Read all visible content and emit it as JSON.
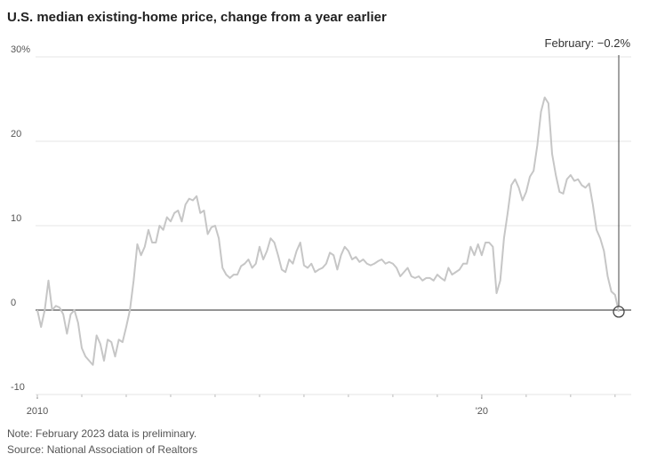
{
  "chart_data": {
    "type": "line",
    "title": "U.S. median existing-home price, change from a year earlier",
    "annotation": "February: −0.2%",
    "note": "Note: February 2023 data is preliminary.",
    "source": "Source: National Association of Realtors",
    "categories": [
      "2010",
      null,
      null,
      null,
      null,
      null,
      null,
      null,
      null,
      null,
      null,
      null,
      null,
      null,
      null,
      null,
      null,
      null,
      null,
      null,
      null,
      null,
      null,
      null,
      null,
      null,
      null,
      null,
      null,
      null,
      null,
      null,
      null,
      null,
      null,
      null,
      null,
      null,
      null,
      null,
      null,
      null,
      null,
      null,
      null,
      null,
      null,
      null,
      null,
      null,
      null,
      null,
      null,
      null,
      null,
      null,
      null,
      null,
      null,
      null,
      null,
      null,
      null,
      null,
      null,
      null,
      null,
      null,
      null,
      null,
      null,
      null,
      null,
      null,
      null,
      null,
      null,
      null,
      null,
      null,
      null,
      null,
      null,
      null,
      null,
      null,
      null,
      null,
      null,
      null,
      null,
      null,
      null,
      null,
      null,
      null,
      null,
      null,
      null,
      null,
      null,
      null,
      null,
      null,
      null,
      null,
      null,
      null,
      null,
      null,
      null,
      null,
      null,
      null,
      null,
      null,
      null,
      null,
      null,
      null,
      "'20",
      null,
      null,
      null,
      null,
      null,
      null,
      null,
      null,
      null,
      null,
      null,
      null,
      null,
      null,
      null,
      null,
      null,
      null,
      null,
      null,
      null,
      null,
      null,
      null,
      null,
      null,
      null,
      null,
      null,
      null,
      null,
      null,
      null,
      null,
      null,
      null,
      null
    ],
    "series": [
      {
        "name": "Median existing-home price change",
        "color": "#c6c6c6",
        "values": [
          0,
          -2,
          0,
          3.5,
          0,
          0.5,
          0.3,
          -0.5,
          -2.8,
          -0.5,
          0,
          -1.5,
          -4.5,
          -5.5,
          -6,
          -6.5,
          -3,
          -4,
          -6,
          -3.5,
          -3.8,
          -5.5,
          -3.5,
          -3.8,
          -2,
          0,
          3.5,
          7.8,
          6.5,
          7.5,
          9.5,
          8,
          8,
          10,
          9.5,
          11,
          10.5,
          11.5,
          11.8,
          10.5,
          12.5,
          13.2,
          13,
          13.5,
          11.5,
          11.8,
          9,
          9.8,
          10,
          8.5,
          5,
          4.2,
          3.8,
          4.2,
          4.2,
          5.2,
          5.5,
          6,
          5,
          5.5,
          7.5,
          6,
          7,
          8.5,
          8,
          6.5,
          4.8,
          4.5,
          6,
          5.5,
          7,
          8,
          5.3,
          5,
          5.5,
          4.5,
          4.8,
          5,
          5.5,
          6.8,
          6.5,
          4.8,
          6.5,
          7.5,
          7,
          6,
          6.3,
          5.7,
          6,
          5.5,
          5.3,
          5.5,
          5.8,
          6,
          5.5,
          5.7,
          5.5,
          5,
          4,
          4.5,
          5,
          4,
          3.8,
          4,
          3.5,
          3.8,
          3.8,
          3.5,
          4.2,
          3.8,
          3.5,
          5,
          4.2,
          4.5,
          4.8,
          5.5,
          5.5,
          7.5,
          6.5,
          7.8,
          6.5,
          8,
          8,
          7.5,
          2,
          3.5,
          8.5,
          11.5,
          14.8,
          15.5,
          14.5,
          13,
          14,
          15.8,
          16.5,
          19.5,
          23.5,
          25.2,
          24.5,
          18.5,
          16,
          14,
          13.8,
          15.5,
          16,
          15.3,
          15.5,
          14.8,
          14.5,
          15,
          12.5,
          9.5,
          8.5,
          7,
          4,
          2.2,
          1.8,
          -0.2
        ]
      }
    ],
    "ylim": [
      -10,
      30
    ],
    "yticks": [
      {
        "value": 30,
        "label": "30%"
      },
      20,
      10,
      0,
      -10
    ],
    "grid": true
  }
}
